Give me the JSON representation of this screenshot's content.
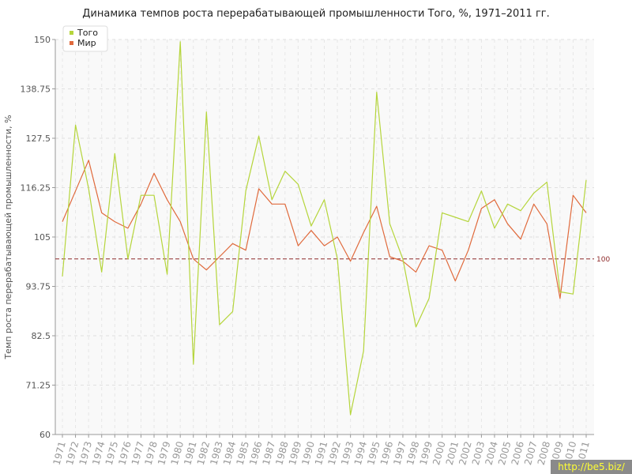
{
  "title": "Динамика темпов роста перерабатывающей промышленности Того, %, 1971–2011 гг.",
  "watermark": "http://be5.biz/",
  "chart_data": {
    "type": "line",
    "title": "Динамика темпов роста перерабатывающей промышленности Того, %, 1971–2011 гг.",
    "xlabel": "",
    "ylabel": "Темп роста перерабатывающей промышленности, %",
    "ylim": [
      60,
      150
    ],
    "yticks": [
      "60",
      "71.25",
      "82.5",
      "93.75",
      "105",
      "116.25",
      "127.5",
      "138.75",
      "150"
    ],
    "x": [
      "1971",
      "1972",
      "1973",
      "1974",
      "1975",
      "1976",
      "1977",
      "1978",
      "1979",
      "1980",
      "1981",
      "1982",
      "1983",
      "1984",
      "1985",
      "1986",
      "1987",
      "1988",
      "1989",
      "1990",
      "1991",
      "1992",
      "1993",
      "1994",
      "1995",
      "1996",
      "1997",
      "1998",
      "1999",
      "2000",
      "2001",
      "2002",
      "2003",
      "2004",
      "2005",
      "2006",
      "2007",
      "2008",
      "2009",
      "2010",
      "2011"
    ],
    "series": [
      {
        "name": "Того",
        "color": "#b5d53b",
        "values": [
          96,
          130.5,
          116,
          97,
          124,
          100,
          114.5,
          114.5,
          96.5,
          149.5,
          76,
          133.5,
          85,
          88,
          115.5,
          128,
          113.5,
          120,
          117,
          107.5,
          113.5,
          100,
          64.5,
          79,
          138,
          108,
          100,
          84.5,
          91,
          110.5,
          109.5,
          108.5,
          115.5,
          107,
          112.5,
          111,
          115,
          117.5,
          92.5,
          92,
          118
        ]
      },
      {
        "name": "Мир",
        "color": "#e06a3c",
        "values": [
          108.5,
          115.5,
          122.5,
          110.5,
          108.5,
          107,
          112.5,
          119.5,
          113.5,
          108.5,
          100,
          97.5,
          100.5,
          103.5,
          102,
          116,
          112.5,
          112.5,
          103,
          106.5,
          103,
          105,
          99.5,
          106,
          112,
          100.5,
          99.5,
          97,
          103,
          102,
          95,
          102,
          111.5,
          113.5,
          108,
          104.5,
          112.5,
          108,
          91,
          114.5,
          110.5
        ]
      }
    ],
    "reference_line": {
      "value": 100,
      "label": "100",
      "color": "#8e2a2a"
    },
    "grid": true,
    "legend": "top-left"
  }
}
